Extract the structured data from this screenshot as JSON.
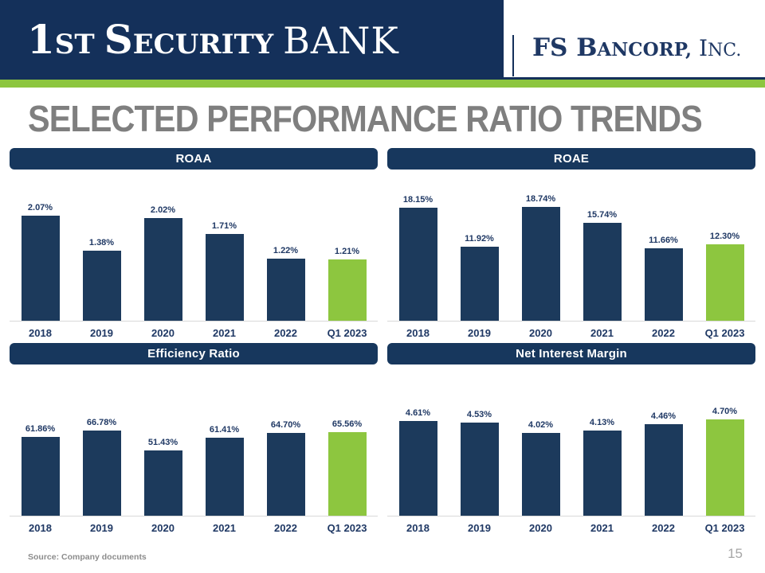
{
  "header": {
    "bank_logo": {
      "num": "1",
      "st": "ST",
      "sec_cap": "S",
      "sec_rest": "ECURITY",
      "bank": "BANK"
    },
    "bancorp_logo": {
      "fs_b": "FS B",
      "ancorp": "ANCORP,",
      "inc_cap": " I",
      "inc_rest": "NC."
    }
  },
  "title": "SELECTED PERFORMANCE RATIO TRENDS",
  "footer": {
    "source": "Source: Company documents",
    "page_number": "15"
  },
  "colors": {
    "header_navy": "#14305A",
    "panel_navy": "#17375D",
    "bar_navy": "#1C3A5C",
    "highlight_green": "#8DC63F",
    "label_navy": "#1F3864",
    "title_gray": "#7F7F7F"
  },
  "chart_data": [
    {
      "type": "bar",
      "title": "ROAA",
      "categories": [
        "2018",
        "2019",
        "2020",
        "2021",
        "2022",
        "Q1 2023"
      ],
      "values": [
        2.07,
        1.38,
        2.02,
        1.71,
        1.22,
        1.21
      ],
      "labels": [
        "2.07%",
        "1.38%",
        "2.02%",
        "1.71%",
        "1.22%",
        "1.21%"
      ],
      "ylim": [
        0,
        2.5
      ],
      "bar_color": "#1C3A5C",
      "highlight_color": "#8DC63F",
      "highlight_index": 5,
      "grid": false,
      "legend": "none"
    },
    {
      "type": "bar",
      "title": "ROAE",
      "categories": [
        "2018",
        "2019",
        "2020",
        "2021",
        "2022",
        "Q1 2023"
      ],
      "values": [
        18.15,
        11.92,
        18.74,
        15.74,
        11.66,
        12.3
      ],
      "labels": [
        "18.15%",
        "11.92%",
        "18.74%",
        "15.74%",
        "11.66%",
        "12.30%"
      ],
      "ylim": [
        0,
        20.5
      ],
      "bar_color": "#1C3A5C",
      "highlight_color": "#8DC63F",
      "highlight_index": 5,
      "grid": false,
      "legend": "none"
    },
    {
      "type": "bar",
      "title": "Efficiency Ratio",
      "categories": [
        "2018",
        "2019",
        "2020",
        "2021",
        "2022",
        "Q1 2023"
      ],
      "values": [
        61.86,
        66.78,
        51.43,
        61.41,
        64.7,
        65.56
      ],
      "labels": [
        "61.86%",
        "66.78%",
        "51.43%",
        "61.41%",
        "64.70%",
        "65.56%"
      ],
      "ylim": [
        0,
        100
      ],
      "bar_color": "#1C3A5C",
      "highlight_color": "#8DC63F",
      "highlight_index": 5,
      "grid": false,
      "legend": "none"
    },
    {
      "type": "bar",
      "title": "Net Interest Margin",
      "categories": [
        "2018",
        "2019",
        "2020",
        "2021",
        "2022",
        "Q1 2023"
      ],
      "values": [
        4.61,
        4.53,
        4.02,
        4.13,
        4.46,
        4.7
      ],
      "labels": [
        "4.61%",
        "4.53%",
        "4.02%",
        "4.13%",
        "4.46%",
        "4.70%"
      ],
      "ylim": [
        0,
        6.2
      ],
      "bar_color": "#1C3A5C",
      "highlight_color": "#8DC63F",
      "highlight_index": 5,
      "grid": false,
      "legend": "none"
    }
  ]
}
